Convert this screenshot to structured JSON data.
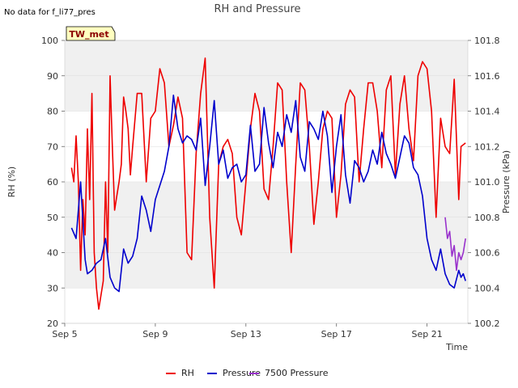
{
  "header": {
    "no_data_note": "No data for f_li77_pres",
    "badge": "TW_met"
  },
  "colors": {
    "rh": "#ee0000",
    "pressure": "#0000cc",
    "pressure_7500": "#9932cc",
    "band": "#f0f0f0",
    "badge_fill": "#ffffc0"
  },
  "chart_data": {
    "type": "line",
    "title": "RH and Pressure",
    "xlabel": "Time",
    "ylabel": "RH (%)",
    "y2label": "Pressure (kPa)",
    "x_range_days": [
      5,
      22.8
    ],
    "x_ticks": [
      {
        "day": 5,
        "label": "Sep 5"
      },
      {
        "day": 9,
        "label": "Sep 9"
      },
      {
        "day": 13,
        "label": "Sep 13"
      },
      {
        "day": 17,
        "label": "Sep 17"
      },
      {
        "day": 21,
        "label": "Sep 21"
      }
    ],
    "ylim": [
      20,
      100
    ],
    "y_ticks": [
      20,
      30,
      40,
      50,
      60,
      70,
      80,
      90,
      100
    ],
    "y2lim": [
      100.2,
      101.8
    ],
    "y2_ticks": [
      "100.2",
      "100.4",
      "100.6",
      "100.8",
      "101.0",
      "101.2",
      "101.4",
      "101.6",
      "101.8"
    ],
    "grid": "horizontal bands",
    "legend_position": "bottom",
    "series": [
      {
        "name": "RH",
        "axis": "left",
        "x": [
          5.3,
          5.4,
          5.5,
          5.6,
          5.7,
          5.8,
          5.9,
          6.0,
          6.1,
          6.2,
          6.3,
          6.4,
          6.5,
          6.6,
          6.7,
          6.8,
          6.9,
          7.0,
          7.1,
          7.2,
          7.3,
          7.4,
          7.5,
          7.6,
          7.7,
          7.8,
          7.9,
          8.0,
          8.2,
          8.4,
          8.6,
          8.8,
          9.0,
          9.2,
          9.4,
          9.6,
          9.8,
          10.0,
          10.2,
          10.4,
          10.6,
          10.8,
          11.0,
          11.2,
          11.4,
          11.6,
          11.8,
          12.0,
          12.2,
          12.4,
          12.6,
          12.8,
          13.0,
          13.2,
          13.4,
          13.6,
          13.8,
          14.0,
          14.2,
          14.4,
          14.6,
          14.8,
          15.0,
          15.2,
          15.4,
          15.6,
          15.8,
          16.0,
          16.2,
          16.4,
          16.6,
          16.8,
          17.0,
          17.2,
          17.4,
          17.6,
          17.8,
          18.0,
          18.2,
          18.4,
          18.6,
          18.8,
          19.0,
          19.2,
          19.4,
          19.6,
          19.8,
          20.0,
          20.2,
          20.4,
          20.6,
          20.8,
          21.0,
          21.2,
          21.4,
          21.6,
          21.8,
          22.0,
          22.2,
          22.4,
          22.5,
          22.7
        ],
        "values": [
          64,
          60,
          73,
          60,
          35,
          55,
          45,
          75,
          55,
          85,
          40,
          30,
          24,
          28,
          32,
          60,
          40,
          90,
          70,
          52,
          56,
          60,
          65,
          84,
          80,
          75,
          62,
          70,
          85,
          85,
          60,
          78,
          80,
          92,
          88,
          70,
          76,
          84,
          78,
          40,
          38,
          68,
          85,
          95,
          50,
          30,
          65,
          70,
          72,
          68,
          50,
          45,
          60,
          75,
          85,
          80,
          58,
          55,
          70,
          88,
          86,
          60,
          40,
          65,
          88,
          86,
          70,
          48,
          60,
          75,
          80,
          78,
          50,
          62,
          82,
          86,
          84,
          60,
          75,
          88,
          88,
          80,
          64,
          86,
          90,
          62,
          82,
          90,
          75,
          66,
          90,
          94,
          92,
          80,
          50,
          78,
          70,
          68,
          89,
          55,
          70,
          71
        ]
      },
      {
        "name": "Pressure",
        "axis": "right",
        "x": [
          5.3,
          5.5,
          5.7,
          5.9,
          6.0,
          6.2,
          6.4,
          6.6,
          6.8,
          7.0,
          7.2,
          7.4,
          7.6,
          7.8,
          8.0,
          8.2,
          8.4,
          8.6,
          8.8,
          9.0,
          9.2,
          9.4,
          9.6,
          9.8,
          10.0,
          10.2,
          10.4,
          10.6,
          10.8,
          11.0,
          11.2,
          11.4,
          11.6,
          11.8,
          12.0,
          12.2,
          12.4,
          12.6,
          12.8,
          13.0,
          13.2,
          13.4,
          13.6,
          13.8,
          14.0,
          14.2,
          14.4,
          14.6,
          14.8,
          15.0,
          15.2,
          15.4,
          15.6,
          15.8,
          16.0,
          16.2,
          16.4,
          16.6,
          16.8,
          17.0,
          17.2,
          17.4,
          17.6,
          17.8,
          18.0,
          18.2,
          18.4,
          18.6,
          18.8,
          19.0,
          19.2,
          19.4,
          19.6,
          19.8,
          20.0,
          20.2,
          20.4,
          20.6,
          20.8,
          21.0,
          21.2,
          21.4,
          21.6,
          21.8,
          22.0,
          22.2,
          22.4,
          22.5,
          22.6,
          22.7
        ],
        "values": [
          100.74,
          100.68,
          101.0,
          100.56,
          100.48,
          100.5,
          100.54,
          100.56,
          100.68,
          100.46,
          100.4,
          100.38,
          100.62,
          100.54,
          100.58,
          100.68,
          100.92,
          100.84,
          100.72,
          100.9,
          100.98,
          101.06,
          101.2,
          101.49,
          101.3,
          101.22,
          101.26,
          101.24,
          101.18,
          101.36,
          100.98,
          101.2,
          101.46,
          101.1,
          101.18,
          101.02,
          101.08,
          101.1,
          101.0,
          101.04,
          101.32,
          101.06,
          101.1,
          101.42,
          101.22,
          101.08,
          101.28,
          101.2,
          101.38,
          101.28,
          101.46,
          101.14,
          101.06,
          101.34,
          101.3,
          101.24,
          101.4,
          101.26,
          100.94,
          101.2,
          101.38,
          101.04,
          100.88,
          101.12,
          101.08,
          101.0,
          101.06,
          101.18,
          101.1,
          101.28,
          101.16,
          101.1,
          101.02,
          101.14,
          101.26,
          101.22,
          101.08,
          101.04,
          100.92,
          100.68,
          100.56,
          100.5,
          100.62,
          100.48,
          100.42,
          100.4,
          100.5,
          100.46,
          100.48,
          100.44
        ]
      },
      {
        "name": "7500 Pressure",
        "axis": "right",
        "x": [
          21.8,
          21.9,
          22.0,
          22.1,
          22.2,
          22.3,
          22.4,
          22.5,
          22.6,
          22.7
        ],
        "values": [
          100.8,
          100.68,
          100.72,
          100.58,
          100.64,
          100.5,
          100.6,
          100.56,
          100.6,
          100.68
        ]
      }
    ]
  }
}
